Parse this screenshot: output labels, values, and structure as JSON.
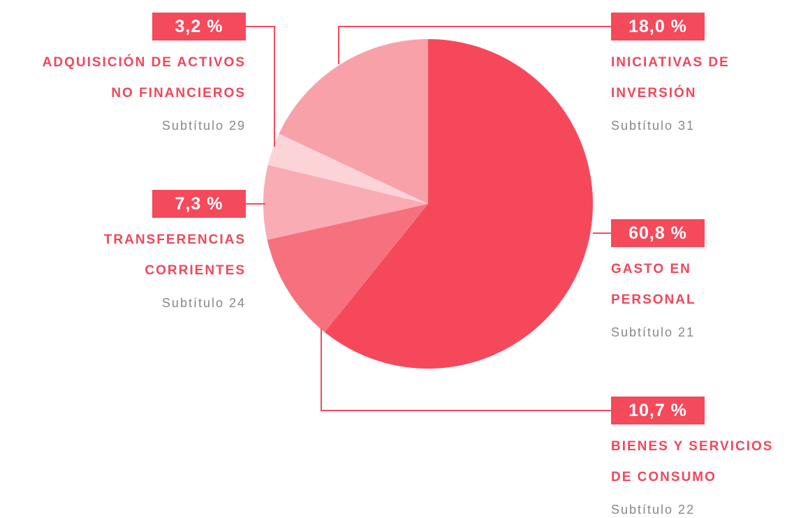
{
  "chart_data": {
    "type": "pie",
    "categories": [
      "GASTO EN\nPERSONAL",
      "BIENES Y SERVICIOS\nDE CONSUMO",
      "TRANSFERENCIAS\nCORRIENTES",
      "ADQUISICIÓN DE ACTIVOS\nNO FINANCIEROS",
      "INICIATIVAS DE\nINVERSIÓN"
    ],
    "subtitles": [
      "Subtítulo 21",
      "Subtítulo 22",
      "Subtítulo 24",
      "Subtítulo 29",
      "Subtítulo 31"
    ],
    "values": [
      60.8,
      10.7,
      7.3,
      3.2,
      18.0
    ],
    "value_labels": [
      "60,8 %",
      "10,7 %",
      "7,3 %",
      "3,2 %",
      "18,0 %"
    ],
    "colors": [
      "#f5495b",
      "#f6717d",
      "#f9acb3",
      "#fcd4d8",
      "#f8a1a9"
    ]
  }
}
